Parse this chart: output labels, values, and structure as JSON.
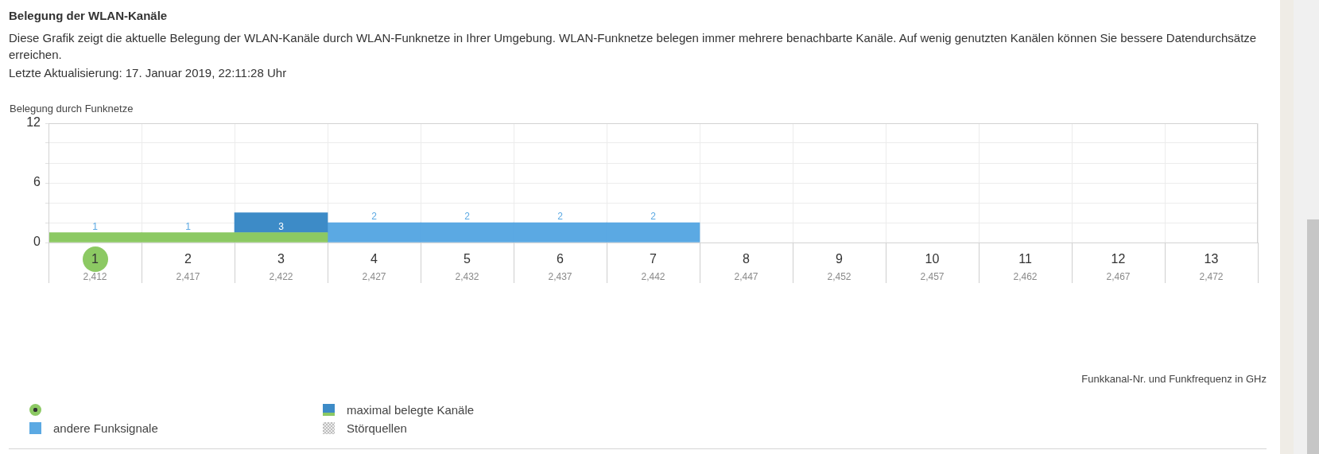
{
  "chart_data": {
    "type": "bar",
    "title": "Belegung der WLAN-Kanäle",
    "subtitle": "Diese Grafik zeigt die aktuelle Belegung der WLAN-Kanäle durch WLAN-Funknetze in Ihrer Umgebung. WLAN-Funknetze belegen immer mehrere benachbarte Kanäle. Auf wenig genutzten Kanälen können Sie bessere Datendurchsätze erreichen.",
    "annotations": [
      "Letzte Aktualisierung: 17. Januar 2019, 22:11:28 Uhr",
      "Funkkanal-Nr. und Funkfrequenz in GHz"
    ],
    "ylabel": "Belegung durch Funknetze",
    "categories": [
      "1\n2,412",
      "2\n2,417",
      "3\n2,422",
      "4\n2,427",
      "5\n2,432",
      "6\n2,437",
      "7\n2,442",
      "8\n2,447",
      "9\n2,452",
      "10\n2,457",
      "11\n2,462",
      "12\n2,467",
      "13\n2,472"
    ],
    "series": [
      {
        "color": "#8cc963",
        "values": [
          1,
          1,
          1,
          null,
          null,
          null,
          null,
          null,
          null,
          null,
          null,
          null,
          null
        ]
      },
      {
        "name": "maximal belegte Kanäle",
        "color": "#3d8bc7",
        "values": [
          null,
          null,
          2,
          null,
          null,
          null,
          null,
          null,
          null,
          null,
          null,
          null,
          null
        ]
      },
      {
        "name": "andere Funksignale",
        "color": "#5ba9e3",
        "values": [
          null,
          null,
          null,
          2,
          2,
          2,
          2,
          null,
          null,
          null,
          null,
          null,
          null
        ]
      },
      {
        "name": "Störquellen",
        "color": "#bdbdbd",
        "values": [
          null,
          null,
          null,
          null,
          null,
          null,
          null,
          null,
          null,
          null,
          null,
          null,
          null
        ]
      }
    ],
    "stacked": true,
    "totals": [
      "1",
      "1",
      "3",
      "2",
      "2",
      "2",
      "2",
      null,
      null,
      null,
      null,
      null,
      null
    ],
    "ylim": [
      0,
      12
    ],
    "yticks": [
      0,
      {
        "value": 2,
        "label": null
      },
      {
        "value": 4,
        "label": null
      },
      6,
      {
        "value": 8,
        "label": null
      },
      {
        "value": 10,
        "label": null
      },
      12
    ],
    "grid": true,
    "legend": "bottom left"
  }
}
